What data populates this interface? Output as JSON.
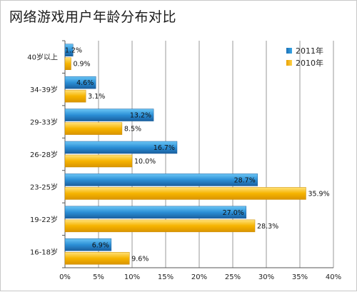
{
  "chart_data": {
    "type": "bar",
    "orientation": "horizontal",
    "title": "网络游戏用户年龄分布对比",
    "categories": [
      "40岁以上",
      "34-39岁",
      "29-33岁",
      "26-28岁",
      "23-25岁",
      "19-22岁",
      "16-18岁"
    ],
    "series": [
      {
        "name": "2011年",
        "values": [
          1.2,
          4.6,
          13.2,
          16.7,
          28.7,
          27.0,
          6.9
        ],
        "labels": [
          "1.2%",
          "4.6%",
          "13.2%",
          "16.7%",
          "28.7%",
          "27.0%",
          "6.9%"
        ],
        "color": "#2b8fd6"
      },
      {
        "name": "2010年",
        "values": [
          0.9,
          3.1,
          8.5,
          10.0,
          35.9,
          28.3,
          9.6
        ],
        "labels": [
          "0.9%",
          "3.1%",
          "8.5%",
          "10.0%",
          "35.9%",
          "28.3%",
          "9.6%"
        ],
        "color": "#f6b400"
      }
    ],
    "xlim": [
      0,
      40
    ],
    "x_ticks": [
      "0%",
      "5%",
      "10%",
      "15%",
      "20%",
      "25%",
      "30%",
      "35%",
      "40%"
    ],
    "grid": true,
    "legend": "top-right"
  }
}
